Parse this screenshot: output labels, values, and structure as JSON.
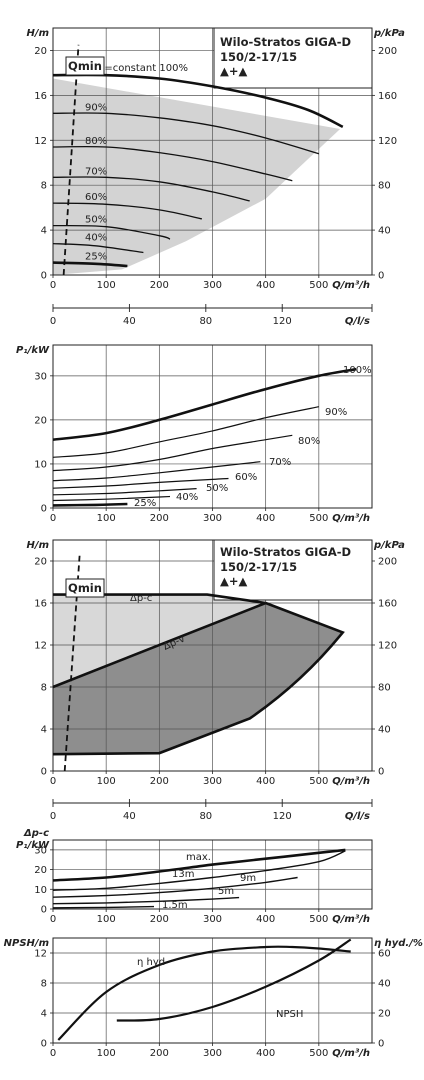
{
  "header": {
    "title_line1": "Wilo-Stratos GIGA-D",
    "title_line2": "150/2-17/15",
    "twin_symbol": "▲+▲"
  },
  "chart_data": [
    {
      "type": "line",
      "id": "head-speed",
      "xlabel": "Q/m³/h",
      "ylabel": "H/m",
      "ylabel_right": "p/kPa",
      "xlim": [
        0,
        600
      ],
      "ylim": [
        0,
        22
      ],
      "xticks": [
        "0",
        "100",
        "200",
        "300",
        "400",
        "500"
      ],
      "yticks": [
        "0",
        "4",
        "8",
        "12",
        "16",
        "20"
      ],
      "yticks_right": [
        "0",
        "40",
        "80",
        "120",
        "160",
        "200"
      ],
      "qmin_label": "Qmin",
      "qmin_line": [
        [
          20,
          0
        ],
        [
          48,
          20.5
        ]
      ],
      "area": [
        [
          0,
          17.5
        ],
        [
          0,
          0
        ],
        [
          130,
          0.5
        ],
        [
          250,
          3
        ],
        [
          400,
          6.8
        ],
        [
          540,
          13
        ]
      ],
      "series": [
        {
          "name": "n=constant 100%",
          "bold": true,
          "x": [
            0,
            100,
            200,
            300,
            400,
            480,
            545
          ],
          "y": [
            17.8,
            17.8,
            17.5,
            16.8,
            15.8,
            14.7,
            13.2
          ]
        },
        {
          "name": "90%",
          "x": [
            0,
            100,
            200,
            300,
            400,
            500
          ],
          "y": [
            14.4,
            14.4,
            14.0,
            13.3,
            12.2,
            10.8
          ]
        },
        {
          "name": "80%",
          "x": [
            0,
            100,
            200,
            300,
            400,
            450
          ],
          "y": [
            11.4,
            11.4,
            10.9,
            10.1,
            9.0,
            8.4
          ]
        },
        {
          "name": "70%",
          "x": [
            0,
            100,
            200,
            300,
            370
          ],
          "y": [
            8.7,
            8.7,
            8.3,
            7.4,
            6.6
          ]
        },
        {
          "name": "60%",
          "x": [
            0,
            100,
            200,
            280
          ],
          "y": [
            6.4,
            6.3,
            5.8,
            5.0
          ]
        },
        {
          "name": "50%",
          "x": [
            0,
            100,
            200,
            220
          ],
          "y": [
            4.4,
            4.3,
            3.5,
            3.2
          ]
        },
        {
          "name": "40%",
          "x": [
            0,
            80,
            170
          ],
          "y": [
            2.8,
            2.6,
            2.0
          ]
        },
        {
          "name": "25%",
          "bold": true,
          "x": [
            0,
            80,
            140
          ],
          "y": [
            1.1,
            1.0,
            0.8
          ]
        }
      ]
    },
    {
      "type": "line",
      "id": "flow-ls-axis",
      "xlabel": "Q/l/s",
      "xlim": [
        0,
        167
      ],
      "xticks": [
        "0",
        "40",
        "80",
        "120"
      ],
      "xtick_values": [
        0,
        40,
        80,
        120
      ]
    },
    {
      "type": "line",
      "id": "power-speed",
      "xlabel": "Q/m³/h",
      "ylabel": "P₁/kW",
      "xlim": [
        0,
        600
      ],
      "ylim": [
        0,
        37
      ],
      "xticks": [
        "0",
        "100",
        "200",
        "300",
        "400",
        "500"
      ],
      "yticks": [
        "0",
        "10",
        "20",
        "30"
      ],
      "series": [
        {
          "name": "100%",
          "bold": true,
          "x": [
            0,
            100,
            200,
            300,
            400,
            500,
            570
          ],
          "y": [
            15.5,
            17.0,
            20.0,
            23.5,
            27.0,
            30.0,
            31.5
          ]
        },
        {
          "name": "90%",
          "x": [
            0,
            100,
            200,
            300,
            400,
            500
          ],
          "y": [
            11.5,
            12.5,
            15.0,
            17.5,
            20.5,
            23.0
          ]
        },
        {
          "name": "80%",
          "x": [
            0,
            100,
            200,
            300,
            400,
            450
          ],
          "y": [
            8.5,
            9.3,
            11.0,
            13.5,
            15.5,
            16.5
          ]
        },
        {
          "name": "70%",
          "x": [
            0,
            100,
            200,
            300,
            390
          ],
          "y": [
            6.2,
            6.8,
            8.0,
            9.3,
            10.5
          ]
        },
        {
          "name": "60%",
          "x": [
            0,
            100,
            200,
            300,
            330
          ],
          "y": [
            4.5,
            5.0,
            5.8,
            6.5,
            6.7
          ]
        },
        {
          "name": "50%",
          "x": [
            0,
            100,
            200,
            270
          ],
          "y": [
            3.0,
            3.3,
            3.9,
            4.4
          ]
        },
        {
          "name": "40%",
          "x": [
            0,
            100,
            200,
            220
          ],
          "y": [
            1.7,
            2.0,
            2.5,
            2.6
          ]
        },
        {
          "name": "25%",
          "bold": true,
          "x": [
            0,
            80,
            140
          ],
          "y": [
            0.6,
            0.7,
            0.9
          ]
        }
      ]
    },
    {
      "type": "area",
      "id": "head-dp",
      "xlabel": "Q/m³/h",
      "ylabel": "H/m",
      "ylabel_right": "p/kPa",
      "xlim": [
        0,
        600
      ],
      "ylim": [
        0,
        22
      ],
      "xticks": [
        "0",
        "100",
        "200",
        "300",
        "400",
        "500"
      ],
      "yticks": [
        "0",
        "4",
        "8",
        "12",
        "16",
        "20"
      ],
      "yticks_right": [
        "0",
        "40",
        "80",
        "120",
        "160",
        "200"
      ],
      "qmin_label": "Qmin",
      "qmin_line": [
        [
          22,
          0
        ],
        [
          50,
          20.5
        ]
      ],
      "dp_c": {
        "name": "Δp-c",
        "x": [
          0,
          290,
          400
        ],
        "y": [
          16.8,
          16.8,
          16.0
        ]
      },
      "dp_v": {
        "name": "Δp-v",
        "x": [
          0,
          400
        ],
        "y": [
          8.0,
          16.0
        ]
      },
      "envelope": {
        "x": [
          400,
          545,
          370,
          200,
          0
        ],
        "y": [
          16.0,
          13.2,
          5.0,
          1.7,
          1.6
        ]
      }
    },
    {
      "type": "line",
      "id": "flow-ls-axis-2",
      "xlabel": "Q/l/s",
      "xlim": [
        0,
        167
      ],
      "xticks": [
        "0",
        "40",
        "80",
        "120"
      ],
      "xtick_values": [
        0,
        40,
        80,
        120
      ]
    },
    {
      "type": "line",
      "id": "power-dpc",
      "ylabel_top": "Δp-c",
      "ylabel": "P₁/kW",
      "xlabel": "Q/m³/h",
      "xlim": [
        0,
        600
      ],
      "ylim": [
        0,
        35
      ],
      "xticks": [
        "0",
        "100",
        "200",
        "300",
        "400",
        "500"
      ],
      "yticks": [
        "0",
        "10",
        "20",
        "30"
      ],
      "series": [
        {
          "name": "max.",
          "bold": true,
          "x": [
            0,
            100,
            200,
            300,
            400,
            500,
            550
          ],
          "y": [
            14.5,
            16.0,
            19.0,
            22.5,
            25.5,
            28.5,
            30.0
          ]
        },
        {
          "name": "13m",
          "x": [
            0,
            100,
            200,
            300,
            400,
            500,
            550
          ],
          "y": [
            9.5,
            10.5,
            13.0,
            16.0,
            19.5,
            24.0,
            29.5
          ]
        },
        {
          "name": "9m",
          "x": [
            0,
            100,
            200,
            300,
            400,
            460
          ],
          "y": [
            6.0,
            6.8,
            8.3,
            10.5,
            13.5,
            16.0
          ]
        },
        {
          "name": "5m",
          "x": [
            0,
            100,
            200,
            300,
            350
          ],
          "y": [
            2.7,
            3.1,
            3.9,
            5.0,
            5.8
          ]
        },
        {
          "name": "1.5m",
          "x": [
            0,
            100,
            190
          ],
          "y": [
            0.6,
            0.8,
            1.2
          ]
        }
      ]
    },
    {
      "type": "line",
      "id": "npsh-efficiency",
      "xlabel": "Q/m³/h",
      "ylabel": "NPSH/m",
      "ylabel_right": "η hyd./%",
      "xlim": [
        0,
        600
      ],
      "ylim": [
        0,
        14
      ],
      "xticks": [
        "0",
        "100",
        "200",
        "300",
        "400",
        "500"
      ],
      "yticks": [
        "0",
        "4",
        "8",
        "12"
      ],
      "yticks_right": [
        "0",
        "20",
        "40",
        "60"
      ],
      "series": [
        {
          "name": "NPSH",
          "axis": "left",
          "x": [
            120,
            200,
            300,
            400,
            500,
            560
          ],
          "y": [
            3.0,
            3.2,
            4.8,
            7.5,
            11.0,
            13.8
          ]
        },
        {
          "name": "η hyd",
          "axis": "right",
          "x": [
            10,
            100,
            200,
            300,
            400,
            450,
            500,
            560
          ],
          "y": [
            2,
            34,
            52,
            61,
            64,
            64,
            63,
            61
          ]
        }
      ]
    }
  ]
}
